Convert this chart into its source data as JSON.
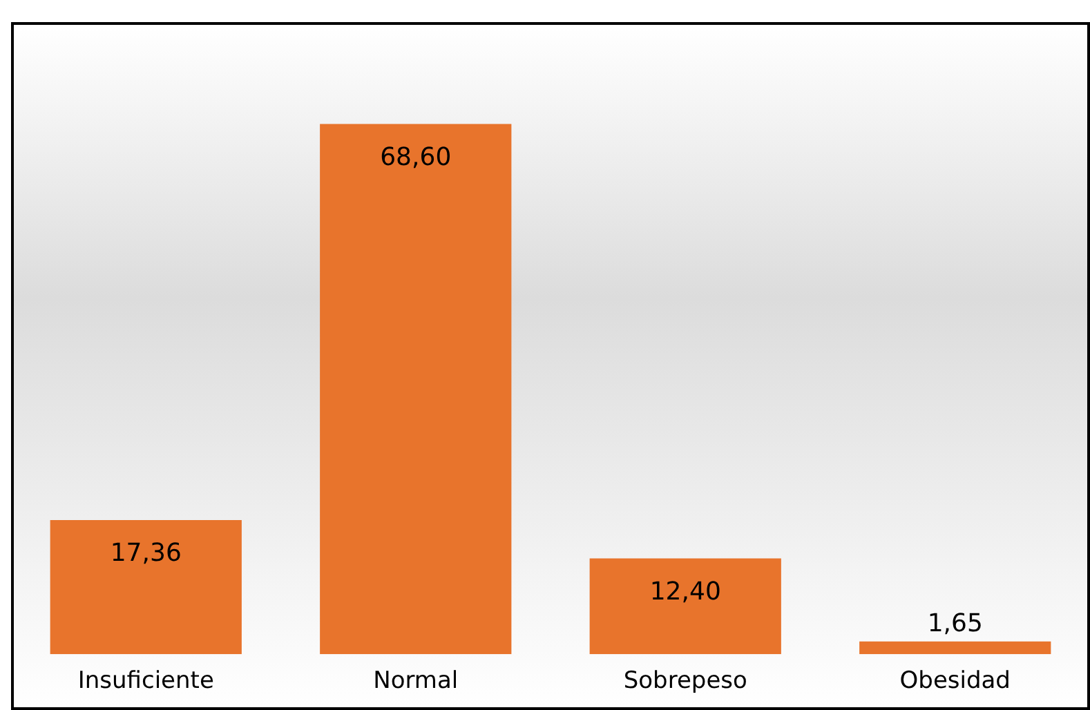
{
  "chart_data": {
    "type": "bar",
    "categories": [
      "Insuficiente",
      "Normal",
      "Sobrepeso",
      "Obesidad"
    ],
    "values": [
      17.36,
      68.6,
      12.4,
      1.65
    ],
    "value_labels": [
      "17,36",
      "68,60",
      "12,40",
      "1,65"
    ],
    "color": "#e8742c",
    "grid": false,
    "legend": false,
    "tick_labels": "x"
  }
}
